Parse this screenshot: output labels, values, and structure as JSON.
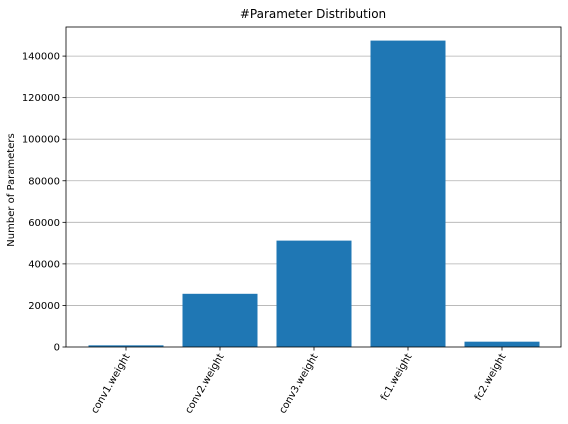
{
  "chart_data": {
    "type": "bar",
    "title": "#Parameter Distribution",
    "xlabel": "",
    "ylabel": "Number of Parameters",
    "categories": [
      "conv1.weight",
      "conv2.weight",
      "conv3.weight",
      "fc1.weight",
      "fc2.weight"
    ],
    "values": [
      800,
      25600,
      51200,
      147456,
      2560
    ],
    "ylim": [
      0,
      154000
    ],
    "yticks": [
      0,
      20000,
      40000,
      60000,
      80000,
      100000,
      120000,
      140000
    ],
    "ytick_labels": [
      "0",
      "20000",
      "40000",
      "60000",
      "80000",
      "100000",
      "120000",
      "140000"
    ],
    "grid": "y",
    "x_tick_rotation_deg": -60,
    "bar_color": "#1f77b4",
    "grid_color": "#b0b0b0"
  }
}
